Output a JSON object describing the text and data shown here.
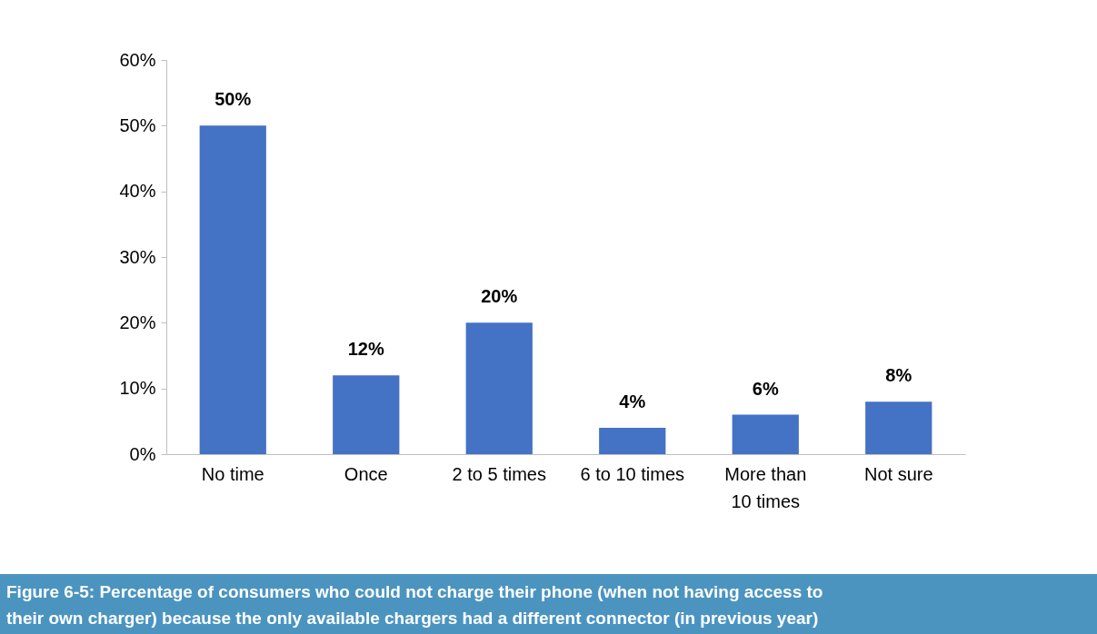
{
  "chart_data": {
    "type": "bar",
    "title": "Figure 6-5: Percentage of consumers who could not charge their phone (when not having access to their own charger) because the only available chargers had a different connector (in previous year)",
    "categories": [
      "No time",
      "Once",
      "2 to 5 times",
      "6 to 10 times",
      "More than 10 times",
      "Not sure"
    ],
    "values": [
      50,
      12,
      20,
      4,
      6,
      8
    ],
    "color": "#4472c4",
    "ylim": [
      0,
      60
    ],
    "yticks": [
      {
        "value": 0,
        "label": "0%"
      },
      {
        "value": 10,
        "label": "10%"
      },
      {
        "value": 20,
        "label": "20%"
      },
      {
        "value": 30,
        "label": "30%"
      },
      {
        "value": 40,
        "label": "40%"
      },
      {
        "value": 50,
        "label": "50%"
      },
      {
        "value": 60,
        "label": "60%"
      }
    ],
    "value_labels": [
      "50%",
      "12%",
      "20%",
      "4%",
      "6%",
      "8%"
    ],
    "grid": false
  }
}
